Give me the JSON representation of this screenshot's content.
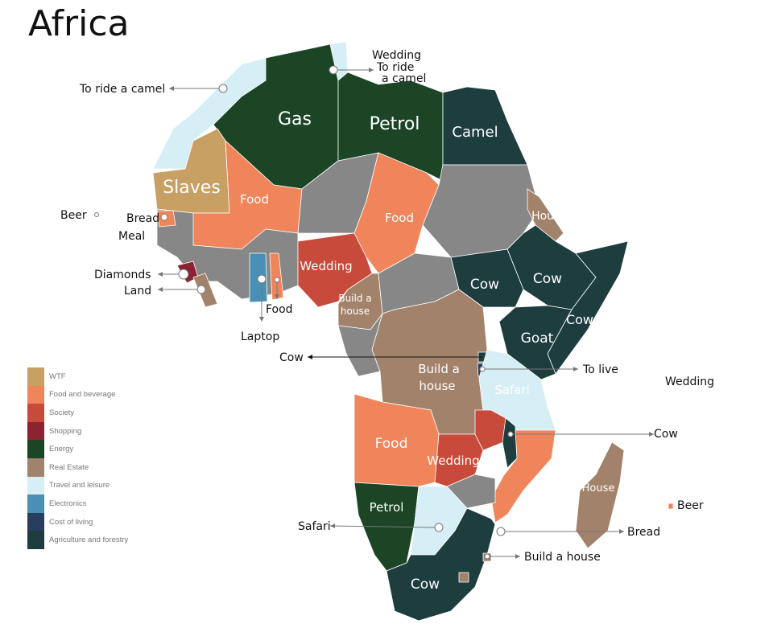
{
  "title": "Africa",
  "legend": [
    {
      "label": "WTF",
      "color": "#c9a063"
    },
    {
      "label": "Food and beverage",
      "color": "#f0845a"
    },
    {
      "label": "Society",
      "color": "#c84a3a"
    },
    {
      "label": "Shopping",
      "color": "#8b2332"
    },
    {
      "label": "Energy",
      "color": "#1c4526"
    },
    {
      "label": "Real Estate",
      "color": "#a3826b"
    },
    {
      "label": "Travel and leisure",
      "color": "#d6eef5"
    },
    {
      "label": "Electronics",
      "color": "#4a8fb5"
    },
    {
      "label": "Cost of living",
      "color": "#263f5f"
    },
    {
      "label": "Agriculture and forestry",
      "color": "#1e3d3f"
    }
  ],
  "no_data_color": "#878787",
  "region_labels": {
    "gas": "Gas",
    "petrol_libya": "Petrol",
    "camel": "Camel",
    "slaves": "Slaves",
    "food_mali": "Food",
    "food_chad": "Food",
    "house_eritrea": "House",
    "cow_ssudan": "Cow",
    "cow_ethiopia": "Cow",
    "cow_somalia": "Cow",
    "goat": "Goat",
    "wedding_nigeria": "Wedding",
    "build_cameroon_1": "Build a",
    "build_cameroon_2": "house",
    "build_drc_1": "Build a",
    "build_drc_2": "house",
    "safari_tz": "Safari",
    "food_angola": "Food",
    "wedding_zambia": "Wedding",
    "petrol_namibia": "Petrol",
    "cow_sa": "Cow",
    "house_madagascar": "House"
  },
  "callouts": {
    "camel_morocco": "To ride a camel",
    "wedding_malta": "Wedding",
    "camel_tunisia_1": "To ride",
    "camel_tunisia_2": "a camel",
    "beer_capeverde": "Beer",
    "bread_senegal": "Bread",
    "meal_gambia": "Meal",
    "diamonds": "Diamonds",
    "land": "Land",
    "food_togo": "Food",
    "laptop": "Laptop",
    "cow_rwanda": "Cow",
    "to_live": "To live",
    "wedding_seychelles": "Wedding",
    "cow_malawi": "Cow",
    "beer_mauritius": "Beer",
    "safari_botswana": "Safari",
    "bread_mozambique": "Bread",
    "build_swaziland": "Build a house"
  }
}
